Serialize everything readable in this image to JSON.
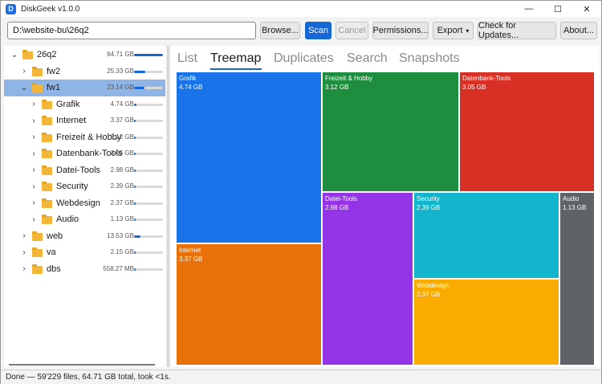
{
  "window": {
    "title": "DiskGeek v1.0.0",
    "app_icon": "D",
    "controls": {
      "minimize": "—",
      "maximize": "☐",
      "close": "✕"
    }
  },
  "toolbar": {
    "path_value": "D:\\website-bu\\26q2",
    "browse_label": "Browse...",
    "scan_label": "Scan",
    "cancel_label": "Cancel",
    "permissions_label": "Permissions...",
    "export_label": "Export",
    "export_arrow": "▾",
    "updates_label": "Check for Updates...",
    "about_label": "About..."
  },
  "tree": {
    "items": [
      {
        "label": "26q2",
        "size": "64.71 GB",
        "fraction": 1.0,
        "expanded": true,
        "selected": false
      },
      {
        "label": "fw2",
        "size": "25.33 GB",
        "fraction": 0.39,
        "expanded": false,
        "selected": false
      },
      {
        "label": "fw1",
        "size": "23.14 GB",
        "fraction": 0.36,
        "expanded": true,
        "selected": true
      },
      {
        "label": "Grafik",
        "size": "4.74 GB",
        "fraction": 0.073,
        "expanded": false,
        "selected": false
      },
      {
        "label": "Internet",
        "size": "3.37 GB",
        "fraction": 0.052,
        "expanded": false,
        "selected": false
      },
      {
        "label": "Freizeit & Hobby",
        "size": "3.12 GB",
        "fraction": 0.048,
        "expanded": false,
        "selected": false
      },
      {
        "label": "Datenbank-Tools",
        "size": "3.05 GB",
        "fraction": 0.047,
        "expanded": false,
        "selected": false
      },
      {
        "label": "Datei-Tools",
        "size": "2.98 GB",
        "fraction": 0.046,
        "expanded": false,
        "selected": false
      },
      {
        "label": "Security",
        "size": "2.39 GB",
        "fraction": 0.037,
        "expanded": false,
        "selected": false
      },
      {
        "label": "Webdesign",
        "size": "2.37 GB",
        "fraction": 0.037,
        "expanded": false,
        "selected": false
      },
      {
        "label": "Audio",
        "size": "1.13 GB",
        "fraction": 0.017,
        "expanded": false,
        "selected": false
      },
      {
        "label": "web",
        "size": "13.53 GB",
        "fraction": 0.21,
        "expanded": false,
        "selected": false
      },
      {
        "label": "va",
        "size": "2.15 GB",
        "fraction": 0.033,
        "expanded": false,
        "selected": false
      },
      {
        "label": "dbs",
        "size": "558.27 MB",
        "fraction": 0.008,
        "expanded": false,
        "selected": false
      }
    ],
    "expanded_icon": "⌄",
    "collapsed_icon": "›"
  },
  "tabs": [
    {
      "label": "List",
      "active": false
    },
    {
      "label": "Treemap",
      "active": true
    },
    {
      "label": "Duplicates",
      "active": false
    },
    {
      "label": "Search",
      "active": false
    },
    {
      "label": "Snapshots",
      "active": false
    }
  ],
  "treemap": {
    "tiles": [
      {
        "name": "Grafik",
        "size": "4.74 GB",
        "color": "#1a73e8"
      },
      {
        "name": "Internet",
        "size": "3.37 GB",
        "color": "#e8710a"
      },
      {
        "name": "Freizeit & Hobby",
        "size": "3.12 GB",
        "color": "#1e8e3e"
      },
      {
        "name": "Datenbank-Tools",
        "size": "3.05 GB",
        "color": "#d93025"
      },
      {
        "name": "Datei-Tools",
        "size": "2.98 GB",
        "color": "#9334e6"
      },
      {
        "name": "Security",
        "size": "2.39 GB",
        "color": "#12b5cb"
      },
      {
        "name": "Webdesign",
        "size": "2.37 GB",
        "color": "#f9ab00"
      },
      {
        "name": "Audio",
        "size": "1.13 GB",
        "color": "#5f6368"
      }
    ]
  },
  "status": {
    "text": "Done — 59'229 files, 64.71 GB total, took <1s."
  }
}
